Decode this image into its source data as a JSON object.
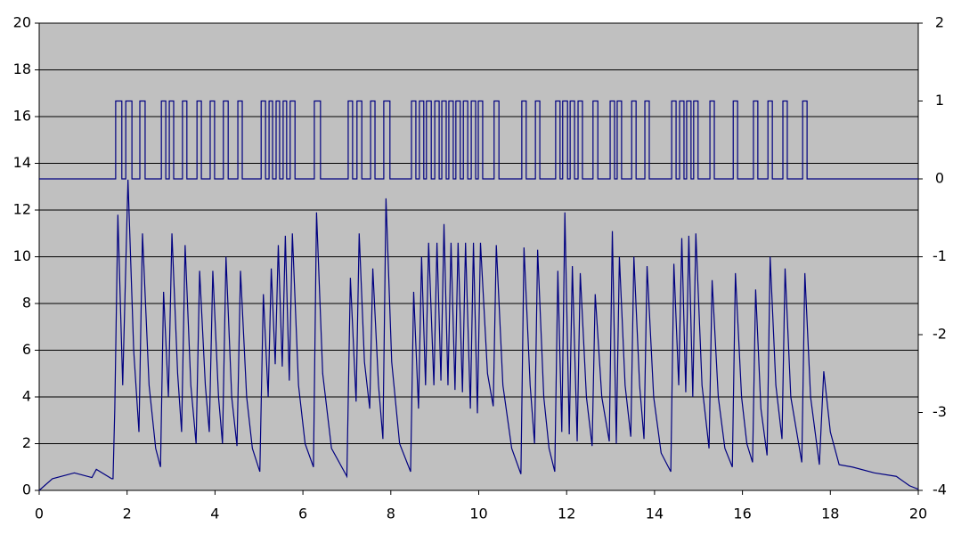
{
  "chart_data": {
    "type": "line",
    "xlim": [
      0,
      20
    ],
    "xticks": [
      0,
      2,
      4,
      6,
      8,
      10,
      12,
      14,
      16,
      18,
      20
    ],
    "ylim": [
      0,
      20
    ],
    "yticks": [
      0,
      2,
      4,
      6,
      8,
      10,
      12,
      14,
      16,
      18,
      20
    ],
    "y2lim": [
      -4,
      2
    ],
    "y2ticks": [
      -4,
      -3,
      -2,
      -1,
      0,
      1,
      2
    ],
    "grid": true,
    "background": "#c0c0c0",
    "series": [
      {
        "color": "#000080",
        "axis": "y2",
        "step": true,
        "x": [
          0,
          1.74,
          1.88,
          1.97,
          2.11,
          2.29,
          2.41,
          2.78,
          2.88,
          2.96,
          3.06,
          3.26,
          3.36,
          3.59,
          3.69,
          3.89,
          3.99,
          4.19,
          4.3,
          4.52,
          4.62,
          5.05,
          5.15,
          5.23,
          5.31,
          5.39,
          5.47,
          5.55,
          5.63,
          5.71,
          5.82,
          6.26,
          6.4,
          7.03,
          7.13,
          7.23,
          7.34,
          7.54,
          7.64,
          7.84,
          7.98,
          8.47,
          8.57,
          8.65,
          8.75,
          8.81,
          8.92,
          9.0,
          9.1,
          9.16,
          9.26,
          9.32,
          9.42,
          9.48,
          9.58,
          9.65,
          9.75,
          9.83,
          9.93,
          9.99,
          10.09,
          10.35,
          10.46,
          10.98,
          11.08,
          11.29,
          11.39,
          11.75,
          11.85,
          11.91,
          12.02,
          12.08,
          12.18,
          12.26,
          12.36,
          12.6,
          12.71,
          12.99,
          13.09,
          13.15,
          13.25,
          13.48,
          13.58,
          13.78,
          13.88,
          14.39,
          14.49,
          14.57,
          14.67,
          14.73,
          14.83,
          14.89,
          14.99,
          15.26,
          15.36,
          15.79,
          15.89,
          16.25,
          16.35,
          16.58,
          16.68,
          16.92,
          17.02,
          17.37,
          17.47,
          20
        ],
        "values": [
          0,
          1,
          0,
          1,
          0,
          1,
          0,
          1,
          0,
          1,
          0,
          1,
          0,
          1,
          0,
          1,
          0,
          1,
          0,
          1,
          0,
          1,
          0,
          1,
          0,
          1,
          0,
          1,
          0,
          1,
          0,
          1,
          0,
          1,
          0,
          1,
          0,
          1,
          0,
          1,
          0,
          1,
          0,
          1,
          0,
          1,
          0,
          1,
          0,
          1,
          0,
          1,
          0,
          1,
          0,
          1,
          0,
          1,
          0,
          1,
          0,
          1,
          0,
          1,
          0,
          1,
          0,
          1,
          0,
          1,
          0,
          1,
          0,
          1,
          0,
          1,
          0,
          1,
          0,
          1,
          0,
          1,
          0,
          1,
          0,
          1,
          0,
          1,
          0,
          1,
          0,
          1,
          0,
          1,
          0,
          1,
          0,
          1,
          0,
          1,
          0,
          1,
          0,
          1,
          0,
          0
        ]
      },
      {
        "color": "#000080",
        "x": [
          0,
          0.3,
          0.8,
          1.2,
          1.3,
          1.65,
          1.68,
          1.72,
          1.79,
          1.9,
          2.02,
          2.15,
          2.27,
          2.35,
          2.5,
          2.65,
          2.76,
          2.83,
          2.94,
          3.02,
          3.15,
          3.24,
          3.32,
          3.45,
          3.57,
          3.65,
          3.78,
          3.87,
          3.95,
          4.08,
          4.17,
          4.25,
          4.38,
          4.5,
          4.58,
          4.72,
          4.85,
          5.02,
          5.1,
          5.21,
          5.28,
          5.37,
          5.44,
          5.53,
          5.6,
          5.69,
          5.76,
          5.9,
          6.05,
          6.24,
          6.31,
          6.45,
          6.65,
          7.0,
          7.08,
          7.21,
          7.28,
          7.4,
          7.52,
          7.59,
          7.72,
          7.82,
          7.89,
          8.02,
          8.2,
          8.45,
          8.52,
          8.63,
          8.7,
          8.79,
          8.86,
          8.98,
          9.05,
          9.14,
          9.21,
          9.3,
          9.37,
          9.46,
          9.53,
          9.63,
          9.7,
          9.81,
          9.88,
          9.97,
          10.04,
          10.2,
          10.33,
          10.4,
          10.55,
          10.75,
          10.96,
          11.03,
          11.17,
          11.27,
          11.34,
          11.48,
          11.6,
          11.73,
          11.8,
          11.89,
          11.96,
          12.06,
          12.13,
          12.24,
          12.31,
          12.45,
          12.58,
          12.65,
          12.8,
          12.97,
          13.04,
          13.13,
          13.2,
          13.33,
          13.46,
          13.53,
          13.66,
          13.76,
          13.83,
          13.98,
          14.15,
          14.37,
          14.44,
          14.55,
          14.62,
          14.71,
          14.78,
          14.87,
          14.94,
          15.08,
          15.24,
          15.31,
          15.45,
          15.6,
          15.77,
          15.84,
          15.98,
          16.1,
          16.23,
          16.3,
          16.42,
          16.56,
          16.63,
          16.76,
          16.9,
          16.97,
          17.1,
          17.35,
          17.42,
          17.55,
          17.75,
          17.85,
          18.0,
          18.2,
          18.5,
          19.0,
          19.5,
          19.8,
          20
        ],
        "values": [
          0,
          0.5,
          0.75,
          0.55,
          0.9,
          0.5,
          0.5,
          3.5,
          11.8,
          4.5,
          13.3,
          6.0,
          2.5,
          11.0,
          4.5,
          1.8,
          1.0,
          8.5,
          4.0,
          11.0,
          5.0,
          2.5,
          10.5,
          4.5,
          2.0,
          9.4,
          4.5,
          2.5,
          9.4,
          4.0,
          2.0,
          10.0,
          4.0,
          1.9,
          9.4,
          4.0,
          1.8,
          0.8,
          8.4,
          4.0,
          9.5,
          5.4,
          10.5,
          5.3,
          10.9,
          4.7,
          11.0,
          4.5,
          2.0,
          1.0,
          11.9,
          5.0,
          1.8,
          0.6,
          9.1,
          3.8,
          11.0,
          5.5,
          3.5,
          9.5,
          4.5,
          2.2,
          12.5,
          5.5,
          2.0,
          0.8,
          8.5,
          3.5,
          10.0,
          4.5,
          10.6,
          4.5,
          10.6,
          4.7,
          11.4,
          4.5,
          10.6,
          4.3,
          10.6,
          4.2,
          10.6,
          3.5,
          10.6,
          3.3,
          10.6,
          5.0,
          3.6,
          10.5,
          4.5,
          1.8,
          0.7,
          10.4,
          4.5,
          2.0,
          10.3,
          4.0,
          1.8,
          0.8,
          9.4,
          2.5,
          11.9,
          2.4,
          9.6,
          2.1,
          9.3,
          4.0,
          1.9,
          8.4,
          4.0,
          2.1,
          11.1,
          2.0,
          10.0,
          4.5,
          2.3,
          10.0,
          4.5,
          2.2,
          9.6,
          4.0,
          1.6,
          0.8,
          9.7,
          4.5,
          10.8,
          4.2,
          10.9,
          4.0,
          11.0,
          4.5,
          1.8,
          9.0,
          4.0,
          1.8,
          1.0,
          9.3,
          4.0,
          2.0,
          1.2,
          8.6,
          3.5,
          1.5,
          10.0,
          4.5,
          2.2,
          9.5,
          4.0,
          1.2,
          9.3,
          4.0,
          1.1,
          5.1,
          2.5,
          1.1,
          1.0,
          0.75,
          0.6,
          0.2,
          0.05
        ]
      }
    ]
  }
}
